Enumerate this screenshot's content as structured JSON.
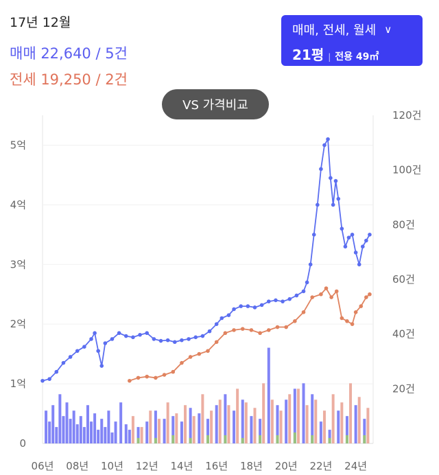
{
  "header": {
    "period": "17년 12월",
    "sale_summary": "매매 22,640 / 5건",
    "lease_summary": "전세 19,250 / 2건"
  },
  "filter": {
    "type_label": "매매, 전세, 월세",
    "pyeong": "21평",
    "exclusive_area": "전용 49㎡"
  },
  "compare_button": "VS 가격비교",
  "colors": {
    "sale": "#5b6ef0",
    "lease": "#e0835f",
    "monthly": "#7bc043",
    "sale_bar": "#6b6ef5",
    "lease_bar": "#e9a090",
    "monthly_bar": "#9ccc6a"
  },
  "chart_data": {
    "type": "line",
    "xlim": [
      2006,
      2025
    ],
    "x_ticks": [
      {
        "value": 2006,
        "label": "06년"
      },
      {
        "value": 2008,
        "label": "08년"
      },
      {
        "value": 2010,
        "label": "10년"
      },
      {
        "value": 2012,
        "label": "12년"
      },
      {
        "value": 2014,
        "label": "14년"
      },
      {
        "value": 2016,
        "label": "16년"
      },
      {
        "value": 2018,
        "label": "18년"
      },
      {
        "value": 2020,
        "label": "20년"
      },
      {
        "value": 2022,
        "label": "22년"
      },
      {
        "value": 2024,
        "label": "24년"
      }
    ],
    "y_left": {
      "range": [
        0,
        5.5
      ],
      "ticks": [
        {
          "value": 0,
          "label": "0"
        },
        {
          "value": 1,
          "label": "1억"
        },
        {
          "value": 2,
          "label": "2억"
        },
        {
          "value": 3,
          "label": "3억"
        },
        {
          "value": 4,
          "label": "4억"
        },
        {
          "value": 5,
          "label": "5억"
        }
      ]
    },
    "y_right": {
      "range": [
        0,
        120
      ],
      "ticks": [
        {
          "value": 20,
          "label": "20건"
        },
        {
          "value": 40,
          "label": "40건"
        },
        {
          "value": 60,
          "label": "60건"
        },
        {
          "value": 80,
          "label": "80건"
        },
        {
          "value": 100,
          "label": "100건"
        },
        {
          "value": 120,
          "label": "120건"
        }
      ]
    },
    "price_series": [
      {
        "key": "sale",
        "points": [
          [
            2006.0,
            1.05
          ],
          [
            2006.4,
            1.08
          ],
          [
            2006.8,
            1.2
          ],
          [
            2007.2,
            1.35
          ],
          [
            2007.6,
            1.45
          ],
          [
            2008.0,
            1.55
          ],
          [
            2008.4,
            1.62
          ],
          [
            2008.8,
            1.75
          ],
          [
            2009.0,
            1.85
          ],
          [
            2009.2,
            1.55
          ],
          [
            2009.4,
            1.3
          ],
          [
            2009.6,
            1.68
          ],
          [
            2010.0,
            1.75
          ],
          [
            2010.4,
            1.85
          ],
          [
            2010.8,
            1.8
          ],
          [
            2011.2,
            1.78
          ],
          [
            2011.6,
            1.82
          ],
          [
            2012.0,
            1.85
          ],
          [
            2012.4,
            1.75
          ],
          [
            2012.8,
            1.72
          ],
          [
            2013.2,
            1.73
          ],
          [
            2013.6,
            1.7
          ],
          [
            2014.0,
            1.73
          ],
          [
            2014.4,
            1.75
          ],
          [
            2014.8,
            1.78
          ],
          [
            2015.2,
            1.8
          ],
          [
            2015.6,
            1.88
          ],
          [
            2016.0,
            2.0
          ],
          [
            2016.3,
            2.1
          ],
          [
            2016.7,
            2.15
          ],
          [
            2017.0,
            2.25
          ],
          [
            2017.4,
            2.3
          ],
          [
            2017.8,
            2.3
          ],
          [
            2018.2,
            2.28
          ],
          [
            2018.6,
            2.32
          ],
          [
            2019.0,
            2.38
          ],
          [
            2019.4,
            2.4
          ],
          [
            2019.8,
            2.38
          ],
          [
            2020.2,
            2.42
          ],
          [
            2020.6,
            2.48
          ],
          [
            2021.0,
            2.55
          ],
          [
            2021.2,
            2.7
          ],
          [
            2021.4,
            3.0
          ],
          [
            2021.6,
            3.5
          ],
          [
            2021.8,
            4.0
          ],
          [
            2022.0,
            4.6
          ],
          [
            2022.2,
            5.0
          ],
          [
            2022.4,
            5.1
          ],
          [
            2022.55,
            4.45
          ],
          [
            2022.7,
            4.0
          ],
          [
            2022.85,
            4.4
          ],
          [
            2023.0,
            4.1
          ],
          [
            2023.2,
            3.6
          ],
          [
            2023.4,
            3.3
          ],
          [
            2023.6,
            3.45
          ],
          [
            2023.8,
            3.5
          ],
          [
            2024.0,
            3.2
          ],
          [
            2024.2,
            3.0
          ],
          [
            2024.4,
            3.3
          ],
          [
            2024.6,
            3.4
          ],
          [
            2024.8,
            3.5
          ]
        ]
      },
      {
        "key": "lease",
        "points": [
          [
            2011.0,
            1.05
          ],
          [
            2011.5,
            1.1
          ],
          [
            2012.0,
            1.12
          ],
          [
            2012.5,
            1.1
          ],
          [
            2013.0,
            1.15
          ],
          [
            2013.5,
            1.2
          ],
          [
            2014.0,
            1.35
          ],
          [
            2014.5,
            1.45
          ],
          [
            2015.0,
            1.5
          ],
          [
            2015.5,
            1.55
          ],
          [
            2016.0,
            1.7
          ],
          [
            2016.5,
            1.85
          ],
          [
            2017.0,
            1.9
          ],
          [
            2017.5,
            1.92
          ],
          [
            2018.0,
            1.9
          ],
          [
            2018.5,
            1.85
          ],
          [
            2019.0,
            1.9
          ],
          [
            2019.5,
            1.95
          ],
          [
            2020.0,
            1.95
          ],
          [
            2020.5,
            2.05
          ],
          [
            2021.0,
            2.2
          ],
          [
            2021.5,
            2.45
          ],
          [
            2022.0,
            2.5
          ],
          [
            2022.3,
            2.6
          ],
          [
            2022.6,
            2.45
          ],
          [
            2022.9,
            2.55
          ],
          [
            2023.2,
            2.1
          ],
          [
            2023.5,
            2.05
          ],
          [
            2023.8,
            2.0
          ],
          [
            2024.0,
            2.2
          ],
          [
            2024.3,
            2.3
          ],
          [
            2024.6,
            2.45
          ],
          [
            2024.8,
            2.5
          ]
        ]
      }
    ],
    "volume_series": [
      {
        "key": "sale_bar",
        "values": [
          [
            2006.2,
            12
          ],
          [
            2006.4,
            8
          ],
          [
            2006.6,
            14
          ],
          [
            2006.8,
            6
          ],
          [
            2007.0,
            18
          ],
          [
            2007.2,
            10
          ],
          [
            2007.4,
            15
          ],
          [
            2007.6,
            9
          ],
          [
            2007.8,
            12
          ],
          [
            2008.0,
            7
          ],
          [
            2008.2,
            10
          ],
          [
            2008.4,
            6
          ],
          [
            2008.6,
            14
          ],
          [
            2008.8,
            8
          ],
          [
            2009.0,
            11
          ],
          [
            2009.2,
            5
          ],
          [
            2009.4,
            9
          ],
          [
            2009.6,
            6
          ],
          [
            2009.8,
            12
          ],
          [
            2010.0,
            4
          ],
          [
            2010.2,
            8
          ],
          [
            2010.5,
            15
          ],
          [
            2010.8,
            7
          ],
          [
            2011.0,
            5
          ],
          [
            2011.5,
            6
          ],
          [
            2012.0,
            8
          ],
          [
            2012.5,
            12
          ],
          [
            2013.0,
            9
          ],
          [
            2013.5,
            10
          ],
          [
            2014.0,
            8
          ],
          [
            2014.5,
            13
          ],
          [
            2015.0,
            11
          ],
          [
            2015.5,
            9
          ],
          [
            2016.0,
            14
          ],
          [
            2016.5,
            18
          ],
          [
            2017.0,
            12
          ],
          [
            2017.5,
            16
          ],
          [
            2018.0,
            10
          ],
          [
            2018.5,
            9
          ],
          [
            2019.0,
            35
          ],
          [
            2019.5,
            14
          ],
          [
            2020.0,
            16
          ],
          [
            2020.5,
            20
          ],
          [
            2021.0,
            22
          ],
          [
            2021.5,
            18
          ],
          [
            2022.0,
            8
          ],
          [
            2022.5,
            5
          ],
          [
            2023.0,
            12
          ],
          [
            2023.5,
            10
          ],
          [
            2024.0,
            14
          ],
          [
            2024.5,
            9
          ]
        ]
      },
      {
        "key": "lease_bar",
        "values": [
          [
            2011.2,
            10
          ],
          [
            2011.7,
            6
          ],
          [
            2012.2,
            12
          ],
          [
            2012.7,
            9
          ],
          [
            2013.2,
            15
          ],
          [
            2013.7,
            11
          ],
          [
            2014.2,
            14
          ],
          [
            2014.7,
            10
          ],
          [
            2015.2,
            18
          ],
          [
            2015.7,
            12
          ],
          [
            2016.2,
            16
          ],
          [
            2016.7,
            14
          ],
          [
            2017.2,
            20
          ],
          [
            2017.7,
            15
          ],
          [
            2018.2,
            13
          ],
          [
            2018.7,
            22
          ],
          [
            2019.2,
            16
          ],
          [
            2019.7,
            12
          ],
          [
            2020.2,
            18
          ],
          [
            2020.7,
            20
          ],
          [
            2021.2,
            14
          ],
          [
            2021.7,
            16
          ],
          [
            2022.2,
            12
          ],
          [
            2022.7,
            18
          ],
          [
            2023.2,
            15
          ],
          [
            2023.7,
            22
          ],
          [
            2024.2,
            17
          ],
          [
            2024.7,
            13
          ]
        ]
      },
      {
        "key": "monthly_bar",
        "values": [
          [
            2011.5,
            2
          ],
          [
            2012.5,
            2
          ],
          [
            2013.5,
            3
          ],
          [
            2014.5,
            2
          ],
          [
            2015.5,
            3
          ],
          [
            2016.5,
            3
          ],
          [
            2017.5,
            2
          ],
          [
            2018.5,
            3
          ],
          [
            2019.5,
            3
          ],
          [
            2020.5,
            4
          ],
          [
            2021.5,
            3
          ],
          [
            2022.5,
            2
          ],
          [
            2023.5,
            3
          ],
          [
            2024.5,
            3
          ]
        ]
      }
    ]
  }
}
